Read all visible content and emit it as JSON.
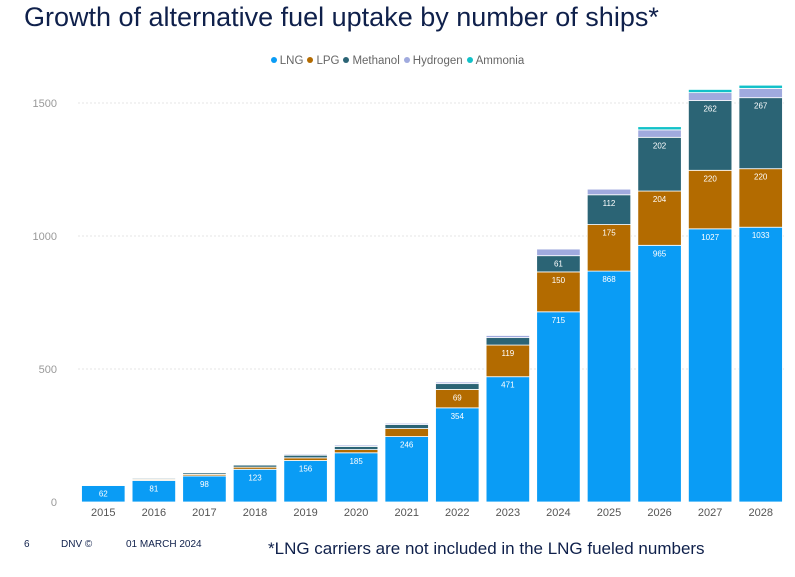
{
  "slide": {
    "title": "Growth of alternative fuel uptake by number of ships*",
    "page_number": "6",
    "copyright": "DNV ©",
    "date": "01 MARCH 2024",
    "footnote": "*LNG carriers are not included in the LNG fueled numbers"
  },
  "chart_data": {
    "type": "bar",
    "stacked": true,
    "title": "",
    "xlabel": "",
    "ylabel": "",
    "ylim": [
      0,
      1500
    ],
    "yticks": [
      0,
      500,
      1000,
      1500
    ],
    "grid": true,
    "legend_position": "top",
    "categories": [
      "2015",
      "2016",
      "2017",
      "2018",
      "2019",
      "2020",
      "2021",
      "2022",
      "2023",
      "2024",
      "2025",
      "2026",
      "2027",
      "2028"
    ],
    "series": [
      {
        "name": "LNG",
        "color": "#0a9cf5",
        "values": [
          62,
          81,
          98,
          123,
          156,
          185,
          246,
          354,
          471,
          715,
          868,
          965,
          1027,
          1033
        ],
        "labels": [
          "62",
          "81",
          "98",
          "123",
          "156",
          "185",
          "246",
          "354",
          "471",
          "715",
          "868",
          "965",
          "1027",
          "1033"
        ]
      },
      {
        "name": "LPG",
        "color": "#b36b00",
        "values": [
          2,
          4,
          6,
          8,
          10,
          12,
          30,
          69,
          119,
          150,
          175,
          204,
          220,
          220
        ],
        "labels": [
          "",
          "",
          "",
          "",
          "",
          "",
          "",
          "69",
          "119",
          "150",
          "175",
          "204",
          "220",
          "220"
        ]
      },
      {
        "name": "Methanol",
        "color": "#2b6475",
        "values": [
          2,
          4,
          6,
          8,
          10,
          12,
          15,
          22,
          28,
          61,
          112,
          202,
          262,
          267
        ],
        "labels": [
          "",
          "",
          "",
          "",
          "",
          "",
          "",
          "",
          "",
          "61",
          "112",
          "202",
          "262",
          "267"
        ]
      },
      {
        "name": "Hydrogen",
        "color": "#a0aade",
        "values": [
          1,
          2,
          3,
          3,
          4,
          5,
          5,
          6,
          8,
          25,
          22,
          28,
          30,
          35
        ],
        "labels": [
          "",
          "",
          "",
          "",
          "",
          "",
          "",
          "",
          "",
          "",
          "",
          "",
          "",
          ""
        ]
      },
      {
        "name": "Ammonia",
        "color": "#12c1c8",
        "values": [
          0,
          0,
          0,
          0,
          0,
          0,
          0,
          0,
          0,
          0,
          1,
          12,
          12,
          12
        ],
        "labels": [
          "",
          "",
          "",
          "",
          "",
          "",
          "",
          "",
          "",
          "",
          "",
          "",
          "",
          ""
        ]
      }
    ]
  }
}
